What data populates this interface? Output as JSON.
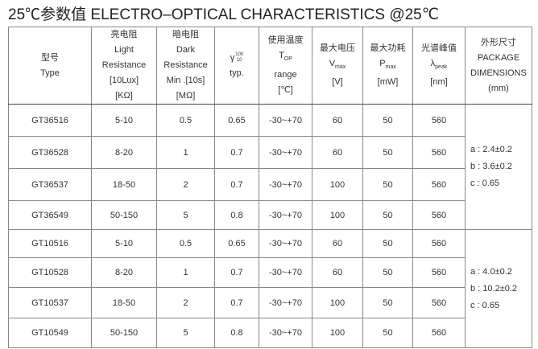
{
  "title": "25℃参数值  ELECTRO–OPTICAL CHARACTERISTICS @25℃",
  "headers": {
    "type": {
      "cn": "型号",
      "en": "Type"
    },
    "light": {
      "cn": "亮电阻",
      "l1": "Light",
      "l2": "Resistance",
      "l3": "[10Lux]",
      "l4": "[KΩ]"
    },
    "dark": {
      "cn": "暗电阻",
      "l1": "Dark",
      "l2": "Resistance",
      "l3": "Min .[10s]",
      "l4": "[MΩ]"
    },
    "gamma": {
      "sym": "γ",
      "sup": "100",
      "sub": "10",
      "l2": "typ."
    },
    "temp": {
      "cn": "使用温度",
      "sym": "T",
      "sub": "OP",
      "l2": "range",
      "l3": "[℃]"
    },
    "vmax": {
      "cn": "最大电压",
      "sym": "V",
      "sub": "max",
      "l2": "[V]"
    },
    "pmax": {
      "cn": "最大功耗",
      "sym": "P",
      "sub": "max",
      "l2": "[mW]"
    },
    "peak": {
      "cn": "光谱峰值",
      "sym": "λ",
      "sub": "peak",
      "l2": "[nm]"
    },
    "pkg": {
      "cn": "外形尺寸",
      "l1": "PACKAGE",
      "l2": "DIMENSIONS",
      "l3": "(mm)"
    }
  },
  "groups": [
    {
      "rows": [
        [
          "GT36516",
          "5-10",
          "0.5",
          "0.65",
          "-30~+70",
          "60",
          "50",
          "560"
        ],
        [
          "GT36528",
          "8-20",
          "1",
          "0.7",
          "-30~+70",
          "60",
          "50",
          "560"
        ],
        [
          "GT36537",
          "18-50",
          "2",
          "0.7",
          "-30~+70",
          "100",
          "50",
          "560"
        ],
        [
          "GT36549",
          "50-150",
          "5",
          "0.8",
          "-30~+70",
          "100",
          "50",
          "560"
        ]
      ],
      "pkg": [
        "a : 2.4±0.2",
        "b : 3.6±0.2",
        "c : 0.65"
      ]
    },
    {
      "rows": [
        [
          "GT10516",
          "5-10",
          "0.5",
          "0.65",
          "-30~+70",
          "60",
          "50",
          "560"
        ],
        [
          "GT10528",
          "8-20",
          "1",
          "0.7",
          "-30~+70",
          "60",
          "50",
          "560"
        ],
        [
          "GT10537",
          "18-50",
          "2",
          "0.7",
          "-30~+70",
          "100",
          "50",
          "560"
        ],
        [
          "GT10549",
          "50-150",
          "5",
          "0.8",
          "-30~+70",
          "100",
          "50",
          "560"
        ]
      ],
      "pkg": [
        "a : 4.0±0.2",
        "b : 10.2±0.2",
        "c : 0.65"
      ]
    }
  ]
}
